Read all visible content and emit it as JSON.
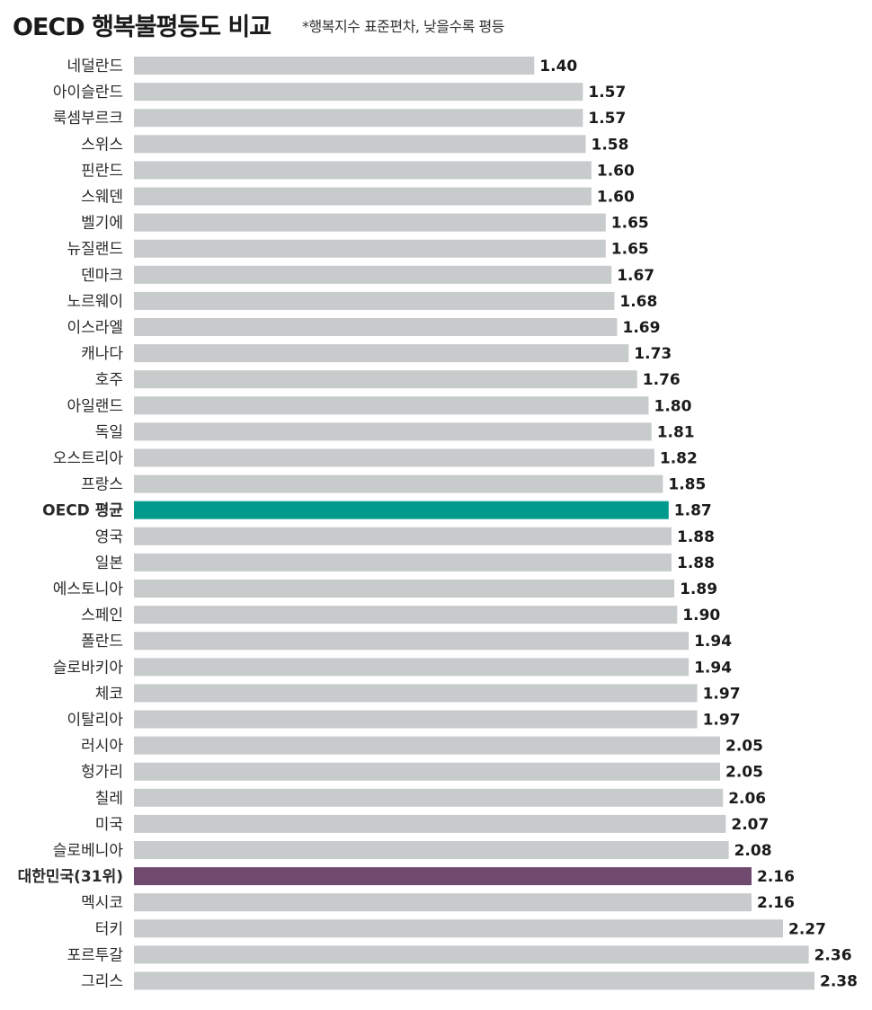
{
  "chart_data": {
    "type": "bar",
    "orientation": "horizontal",
    "title": "OECD 행복불평등도 비교",
    "subtitle": "*행복지수 표준편차, 낮을수록 평등",
    "categories": [
      "네덜란드",
      "아이슬란드",
      "룩셈부르크",
      "스위스",
      "핀란드",
      "스웨덴",
      "벨기에",
      "뉴질랜드",
      "덴마크",
      "노르웨이",
      "이스라엘",
      "캐나다",
      "호주",
      "아일랜드",
      "독일",
      "오스트리아",
      "프랑스",
      "OECD 평균",
      "영국",
      "일본",
      "에스토니아",
      "스페인",
      "폴란드",
      "슬로바키아",
      "체코",
      "이탈리아",
      "러시아",
      "헝가리",
      "칠레",
      "미국",
      "슬로베니아",
      "대한민국(31위)",
      "멕시코",
      "터키",
      "포르투갈",
      "그리스"
    ],
    "values": [
      1.4,
      1.57,
      1.57,
      1.58,
      1.6,
      1.6,
      1.65,
      1.65,
      1.67,
      1.68,
      1.69,
      1.73,
      1.76,
      1.8,
      1.81,
      1.82,
      1.85,
      1.87,
      1.88,
      1.88,
      1.89,
      1.9,
      1.94,
      1.94,
      1.97,
      1.97,
      2.05,
      2.05,
      2.06,
      2.07,
      2.08,
      2.16,
      2.16,
      2.27,
      2.36,
      2.38
    ],
    "value_labels": [
      "1.40",
      "1.57",
      "1.57",
      "1.58",
      "1.60",
      "1.60",
      "1.65",
      "1.65",
      "1.67",
      "1.68",
      "1.69",
      "1.73",
      "1.76",
      "1.80",
      "1.81",
      "1.82",
      "1.85",
      "1.87",
      "1.88",
      "1.88",
      "1.89",
      "1.90",
      "1.94",
      "1.94",
      "1.97",
      "1.97",
      "2.05",
      "2.05",
      "2.06",
      "2.07",
      "2.08",
      "2.16",
      "2.16",
      "2.27",
      "2.36",
      "2.38"
    ],
    "highlights": {
      "OECD 평균": "#009b8d",
      "대한민국(31위)": "#704a6e"
    },
    "default_color": "#c8cbcc",
    "xlim": [
      0,
      2.38
    ],
    "grid": false,
    "legend": "none"
  }
}
